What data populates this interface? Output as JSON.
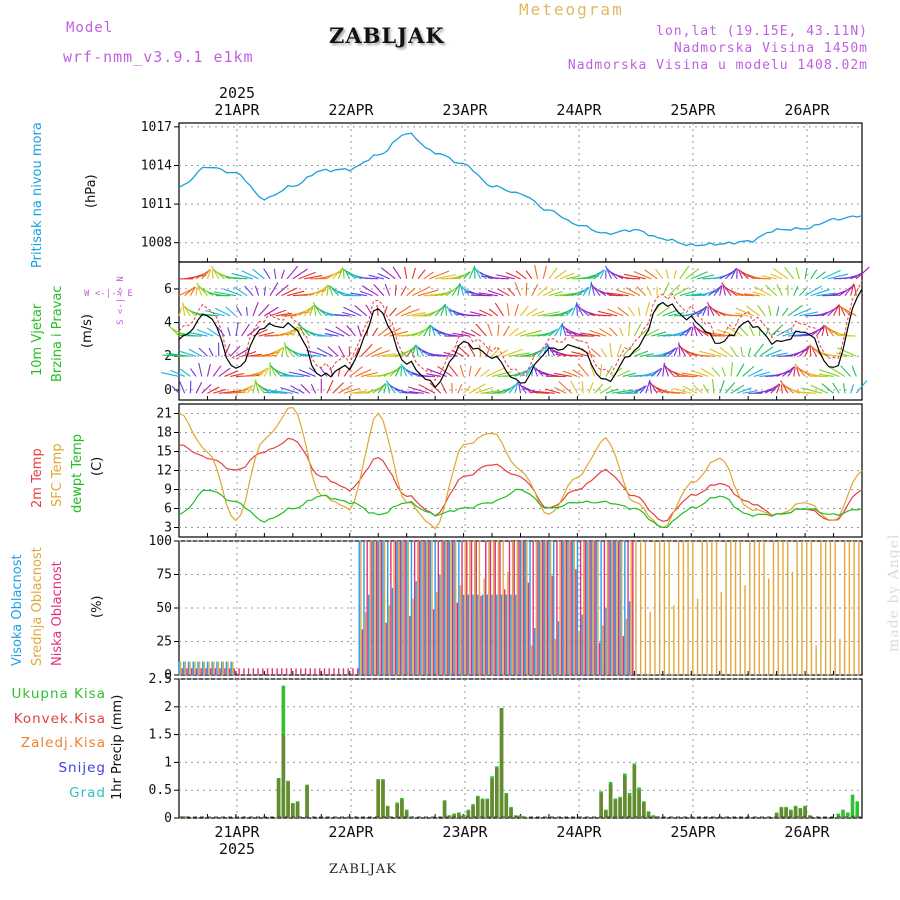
{
  "header": {
    "model_label": "Model",
    "model_name": "wrf-nmm_v3.9.1 e1km",
    "station": "ZABLJAK",
    "meteogram": "Meteogram",
    "coords": "lon,lat (19.15E, 43.11N)",
    "elevation": "Nadmorska Visina 1450m",
    "model_elevation": "Nadmorska Visina u modelu 1408.02m"
  },
  "axes": {
    "year": "2025",
    "days": [
      "21APR",
      "22APR",
      "23APR",
      "24APR",
      "25APR",
      "26APR"
    ]
  },
  "panels": {
    "pressure": {
      "label": "Pritisak na nivou mora",
      "unit": "(hPa)",
      "ticks": [
        "1017",
        "1014",
        "1011",
        "1008"
      ]
    },
    "wind": {
      "label1": "10m Vjetar",
      "label2": "Brzina i Pravac",
      "unit": "(m/s)",
      "compass": "W <-|-> E",
      "compass2": "S <-|-> N",
      "ticks": [
        "6",
        "4",
        "2",
        "0"
      ]
    },
    "temp": {
      "label1": "2m Temp",
      "label2": "SFC Temp",
      "label3": "dewpt Temp",
      "unit": "(C)",
      "ticks": [
        "21",
        "18",
        "15",
        "12",
        "9",
        "6",
        "3"
      ]
    },
    "cloud": {
      "label1": "Visoka Oblacnost",
      "label2": "Srednja Oblacnost",
      "label3": "Niska Oblacnost",
      "unit": "(%)",
      "ticks": [
        "100",
        "75",
        "50",
        "25",
        "0"
      ]
    },
    "precip": {
      "unit": "1hr Precip (mm)",
      "ticks": [
        "2.5",
        "2",
        "1.5",
        "1",
        "0.5",
        "0"
      ],
      "legend": [
        "Ukupna Kisa",
        "Konvek.Kisa",
        "Zaledj.Kisa",
        "Snijeg",
        "Grad"
      ]
    }
  },
  "footer": {
    "station": "ZABLJAK",
    "madeby": "made by Angel"
  },
  "colors": {
    "pressure": "#1aa0e0",
    "temp2m": "#e84040",
    "tempSfc": "#e0a830",
    "dewpt": "#20c020",
    "windspeed": "#000000",
    "gust": "#e84040",
    "cloudHigh": "#20a0e8",
    "cloudMid": "#e0a840",
    "cloudLow": "#e03080",
    "rainTotal": "#30c030",
    "rainConv": "#e04040",
    "rainFrz": "#f08030",
    "snow": "#4040e0",
    "hail": "#30c0c0"
  },
  "chart_data": [
    {
      "type": "line",
      "title": "Pritisak na nivou mora",
      "ylabel": "(hPa)",
      "ylim": [
        1006.5,
        1017.3
      ],
      "x_hours": [
        0,
        6,
        12,
        18,
        24,
        30,
        36,
        42,
        48,
        54,
        60,
        66,
        72,
        78,
        84,
        90,
        96,
        102,
        108,
        114,
        120,
        126,
        132,
        138,
        144
      ],
      "series": [
        {
          "name": "Pritisak na nivou mora",
          "values": [
            1012.3,
            1013.9,
            1013.4,
            1011.4,
            1012.4,
            1013.6,
            1013.7,
            1014.8,
            1016.5,
            1015.0,
            1014.1,
            1012.4,
            1011.8,
            1010.5,
            1009.4,
            1008.7,
            1009.0,
            1008.3,
            1007.8,
            1007.9,
            1008.1,
            1009.0,
            1009.1,
            1009.8,
            1010.1
          ]
        }
      ]
    },
    {
      "type": "line",
      "title": "10m Vjetar Brzina i Pravac",
      "ylabel": "(m/s)",
      "ylim": [
        -0.6,
        7.6
      ],
      "x_hours": [
        0,
        6,
        12,
        18,
        24,
        30,
        36,
        42,
        48,
        54,
        60,
        66,
        72,
        78,
        84,
        90,
        96,
        102,
        108,
        114,
        120,
        126,
        132,
        138,
        144
      ],
      "series": [
        {
          "name": "Brzina",
          "values": [
            3.0,
            4.5,
            1.2,
            3.8,
            3.8,
            0.8,
            1.4,
            4.8,
            1.6,
            0.3,
            2.8,
            2.0,
            0.4,
            2.4,
            2.6,
            0.5,
            2.3,
            5.2,
            4.2,
            2.8,
            4.0,
            2.8,
            3.5,
            1.2,
            6.0
          ]
        }
      ]
    },
    {
      "type": "line",
      "title": "Temp",
      "ylabel": "(C)",
      "ylim": [
        1.5,
        22.5
      ],
      "x_hours": [
        0,
        6,
        12,
        18,
        24,
        30,
        36,
        42,
        48,
        54,
        60,
        66,
        72,
        78,
        84,
        90,
        96,
        102,
        108,
        114,
        120,
        126,
        132,
        138,
        144
      ],
      "series": [
        {
          "name": "2m Temp",
          "values": [
            16,
            14,
            12,
            15,
            17,
            11,
            9,
            14,
            8,
            5,
            11,
            13,
            11,
            6,
            9,
            12,
            8,
            4,
            8,
            10,
            7,
            5,
            6,
            4,
            9
          ]
        },
        {
          "name": "SFC Temp",
          "values": [
            21,
            15,
            4,
            17,
            22,
            8,
            6,
            21,
            7,
            3,
            16,
            18,
            12,
            5,
            11,
            17,
            7,
            3,
            10,
            14,
            6,
            5,
            7,
            4,
            12
          ]
        },
        {
          "name": "dewpt Temp",
          "values": [
            5,
            9,
            7,
            4,
            6,
            8,
            7,
            5,
            7,
            5,
            6,
            7,
            9,
            6,
            7,
            7,
            6,
            3,
            6,
            8,
            5,
            5,
            6,
            5,
            6
          ]
        }
      ]
    },
    {
      "type": "bar",
      "title": "Oblacnost",
      "ylabel": "(%)",
      "ylim": [
        0,
        100
      ],
      "series": [
        {
          "name": "Visoka Oblacnost",
          "segments": [
            [
              0,
              12,
              10
            ],
            [
              12,
              38,
              0
            ],
            [
              38,
              60,
              100
            ],
            [
              60,
              72,
              60
            ],
            [
              72,
              96,
              100
            ],
            [
              96,
              144,
              0
            ]
          ]
        },
        {
          "name": "Srednja Oblacnost",
          "segments": [
            [
              0,
              12,
              10
            ],
            [
              12,
              38,
              0
            ],
            [
              38,
              72,
              100
            ],
            [
              72,
              96,
              100
            ],
            [
              96,
              144,
              100
            ]
          ]
        },
        {
          "name": "Niska Oblacnost",
          "segments": [
            [
              0,
              38,
              5
            ],
            [
              38,
              96,
              100
            ],
            [
              96,
              144,
              0
            ]
          ]
        }
      ]
    },
    {
      "type": "bar",
      "title": "1hr Precip",
      "ylabel": "1hr Precip (mm)",
      "ylim": [
        0,
        2.5
      ],
      "x_hours": [
        1,
        21,
        22,
        23,
        24,
        25,
        27,
        42,
        43,
        44,
        46,
        47,
        48,
        49,
        56,
        57,
        58,
        59,
        60,
        61,
        62,
        63,
        64,
        65,
        66,
        67,
        68,
        69,
        70,
        71,
        72,
        73,
        89,
        90,
        91,
        92,
        93,
        94,
        95,
        96,
        97,
        98,
        99,
        100,
        101,
        126,
        127,
        128,
        129,
        130,
        131,
        132,
        133,
        139,
        140,
        141,
        142,
        143
      ],
      "series": [
        {
          "name": "Ukupna Kisa",
          "values": [
            0.03,
            0.72,
            2.38,
            0.67,
            0.27,
            0.3,
            0.6,
            0.7,
            0.7,
            0.22,
            0.28,
            0.36,
            0.15,
            0.03,
            0.32,
            0.05,
            0.08,
            0.1,
            0.06,
            0.15,
            0.25,
            0.4,
            0.35,
            0.35,
            0.75,
            0.93,
            1.98,
            0.45,
            0.2,
            0.05,
            0.05,
            0.02,
            0.48,
            0.15,
            0.65,
            0.35,
            0.38,
            0.8,
            0.45,
            0.98,
            0.55,
            0.3,
            0.12,
            0.05,
            0.03,
            0.1,
            0.2,
            0.2,
            0.15,
            0.22,
            0.18,
            0.22,
            0.05,
            0.08,
            0.15,
            0.1,
            0.42,
            0.3
          ]
        },
        {
          "name": "Konvek.Kisa",
          "values": [
            0.03,
            0.7,
            1.5,
            0.65,
            0.25,
            0.28,
            0.58,
            0.68,
            0.68,
            0.2,
            0.25,
            0.33,
            0.13,
            0.02,
            0.3,
            0.04,
            0.06,
            0.08,
            0.05,
            0.13,
            0.22,
            0.38,
            0.33,
            0.33,
            0.7,
            0.9,
            1.98,
            0.42,
            0.18,
            0.04,
            0.03,
            0.02,
            0.45,
            0.13,
            0.6,
            0.33,
            0.35,
            0.75,
            0.4,
            0.95,
            0.5,
            0.28,
            0.1,
            0.04,
            0.02,
            0.08,
            0.18,
            0.18,
            0.13,
            0.2,
            0.16,
            0.2,
            0.04,
            0.0,
            0.02,
            0.0,
            0.05,
            0.04
          ]
        }
      ]
    }
  ]
}
